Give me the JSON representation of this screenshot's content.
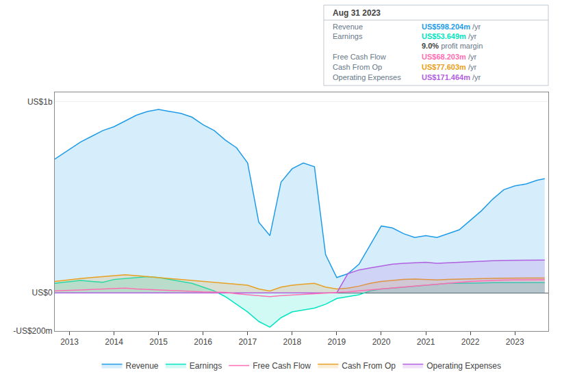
{
  "chart_data": {
    "type": "area",
    "x": [
      2012.67,
      2013.0,
      2013.25,
      2013.5,
      2013.75,
      2014.0,
      2014.25,
      2014.5,
      2014.75,
      2015.0,
      2015.25,
      2015.5,
      2015.75,
      2016.0,
      2016.25,
      2016.5,
      2016.75,
      2017.0,
      2017.25,
      2017.5,
      2017.75,
      2018.0,
      2018.25,
      2018.5,
      2018.75,
      2019.0,
      2019.25,
      2019.5,
      2019.75,
      2020.0,
      2020.25,
      2020.5,
      2020.75,
      2021.0,
      2021.25,
      2021.5,
      2021.75,
      2022.0,
      2022.25,
      2022.5,
      2022.75,
      2023.0,
      2023.25,
      2023.5,
      2023.67
    ],
    "xlim": [
      2012.67,
      2023.75
    ],
    "xticks": [
      2013,
      2014,
      2015,
      2016,
      2017,
      2018,
      2019,
      2020,
      2021,
      2022,
      2023
    ],
    "ylim": [
      -200,
      1050
    ],
    "yticks": [
      {
        "value": -200,
        "label": "-US$200m"
      },
      {
        "value": 0,
        "label": "US$0"
      },
      {
        "value": 1000,
        "label": "US$1b"
      }
    ],
    "grid": true,
    "legend": "bottom",
    "series": [
      {
        "name": "Revenue",
        "color": "#1e9be8",
        "type": "area",
        "values": [
          700,
          750,
          790,
          820,
          850,
          870,
          900,
          930,
          950,
          960,
          950,
          940,
          920,
          880,
          850,
          800,
          760,
          680,
          370,
          300,
          580,
          650,
          680,
          660,
          200,
          80,
          100,
          150,
          250,
          350,
          340,
          310,
          290,
          300,
          290,
          310,
          330,
          380,
          430,
          490,
          540,
          560,
          570,
          590,
          598
        ]
      },
      {
        "name": "Earnings",
        "color": "#00e5c0",
        "type": "area",
        "values": [
          50,
          60,
          65,
          60,
          55,
          70,
          75,
          80,
          85,
          80,
          70,
          60,
          50,
          30,
          10,
          -20,
          -60,
          -100,
          -150,
          -180,
          -130,
          -100,
          -90,
          -80,
          -60,
          -30,
          -20,
          -10,
          10,
          20,
          25,
          30,
          35,
          40,
          45,
          50,
          50,
          50,
          52,
          53,
          54,
          53,
          53,
          54,
          53.6
        ]
      },
      {
        "name": "Free Cash Flow",
        "color": "#ff6eb4",
        "type": "line",
        "values": [
          10,
          12,
          15,
          18,
          20,
          22,
          25,
          20,
          18,
          15,
          12,
          10,
          8,
          5,
          3,
          2,
          -5,
          -10,
          -15,
          -20,
          -15,
          -12,
          -8,
          -5,
          -3,
          0,
          5,
          10,
          15,
          20,
          25,
          30,
          35,
          40,
          45,
          50,
          55,
          60,
          62,
          65,
          67,
          68,
          68,
          68,
          68.2
        ]
      },
      {
        "name": "Cash From Op",
        "color": "#e8a020",
        "type": "area",
        "values": [
          60,
          70,
          75,
          80,
          85,
          90,
          95,
          90,
          85,
          80,
          75,
          70,
          65,
          60,
          55,
          50,
          45,
          40,
          20,
          10,
          30,
          40,
          45,
          50,
          30,
          20,
          25,
          35,
          50,
          60,
          65,
          70,
          72,
          70,
          68,
          70,
          72,
          74,
          75,
          76,
          77,
          77,
          77.5,
          77.6,
          77.6
        ]
      },
      {
        "name": "Operating Expenses",
        "color": "#b060e0",
        "type": "area",
        "values": [
          0,
          0,
          0,
          0,
          0,
          0,
          0,
          0,
          0,
          0,
          0,
          0,
          0,
          0,
          0,
          0,
          0,
          0,
          0,
          0,
          0,
          0,
          0,
          0,
          0,
          0,
          100,
          120,
          130,
          140,
          150,
          155,
          158,
          160,
          155,
          158,
          160,
          162,
          165,
          168,
          170,
          170,
          171,
          171,
          171.5
        ]
      }
    ],
    "annotations": [
      {
        "text": "Aug 31 2023"
      },
      {
        "label": "Revenue",
        "value": "US$598.204m",
        "suffix": " /yr",
        "color": "#1e9be8"
      },
      {
        "label": "Earnings",
        "value": "US$53.649m",
        "suffix": " /yr",
        "color": "#00e5c0"
      },
      {
        "value": "9.0%",
        "suffix": " profit margin"
      },
      {
        "label": "Free Cash Flow",
        "value": "US$68.203m",
        "suffix": " /yr",
        "color": "#ff6eb4"
      },
      {
        "label": "Cash From Op",
        "value": "US$77.603m",
        "suffix": " /yr",
        "color": "#e8a020"
      },
      {
        "label": "Operating Expenses",
        "value": "US$171.464m",
        "suffix": " /yr",
        "color": "#b060e0"
      }
    ]
  }
}
